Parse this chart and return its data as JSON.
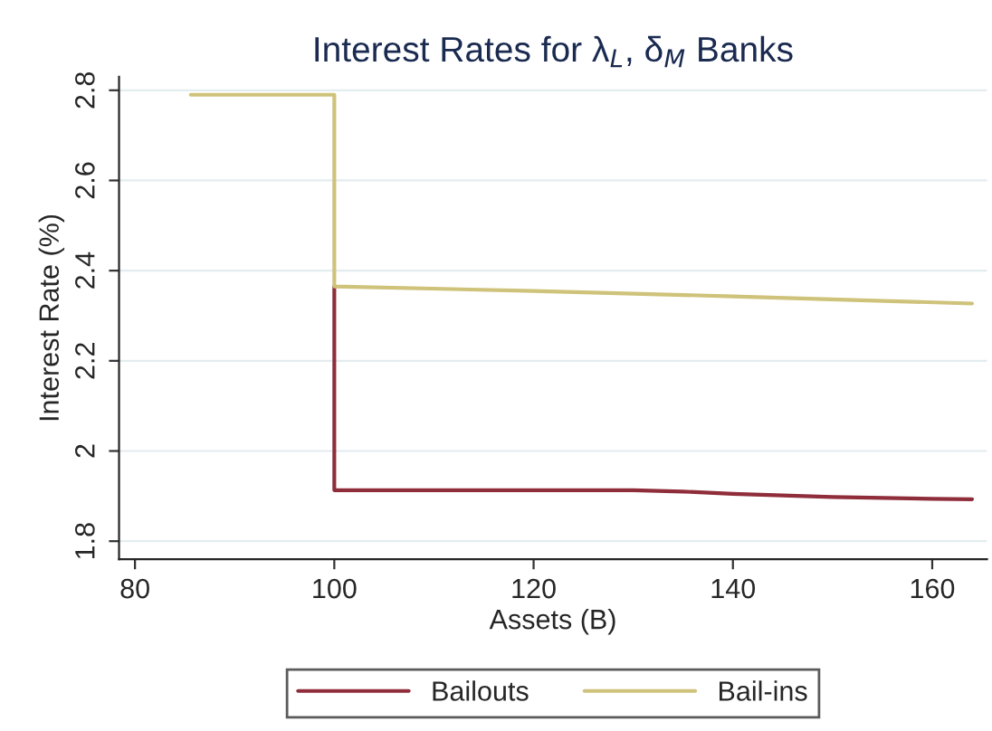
{
  "chart_data": {
    "type": "line",
    "title": "Interest Rates for λ$_{L}$, δ$_{M}$ Banks",
    "xlabel": "Assets (B)",
    "ylabel": "Interest Rate (%)",
    "series": [
      {
        "name": "Bailouts",
        "color": "#8f2d3a",
        "x": [
          100,
          100,
          110,
          120,
          130,
          135,
          140,
          150,
          160,
          164
        ],
        "values": [
          2.365,
          1.913,
          1.913,
          1.913,
          1.913,
          1.91,
          1.905,
          1.898,
          1.894,
          1.893
        ]
      },
      {
        "name": "Bail-ins",
        "color": "#cfc27a",
        "x": [
          85.6,
          100,
          100,
          120,
          140,
          164
        ],
        "values": [
          2.79,
          2.79,
          2.365,
          2.355,
          2.343,
          2.327
        ]
      }
    ],
    "xlim": [
      78.4,
      165.5
    ],
    "ylim": [
      1.76,
      2.83
    ],
    "xticks": [
      80,
      100,
      120,
      140,
      160
    ],
    "yticks": [
      1.8,
      2,
      2.2,
      2.4,
      2.6,
      2.8
    ],
    "grid": "y",
    "legend": "bottom",
    "marker": "none",
    "line_style": "solid"
  }
}
